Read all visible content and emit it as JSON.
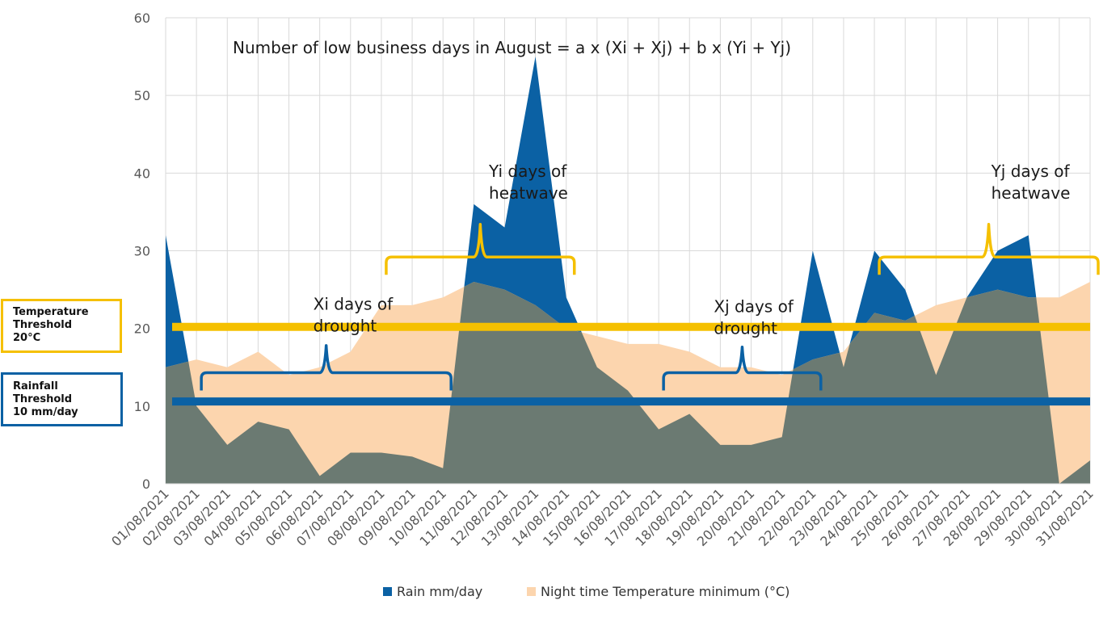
{
  "chart_data": {
    "type": "area",
    "title": "Number of low business days in August = a x (Xi + Xj) + b x (Yi + Yj)",
    "x": [
      "01/08/2021",
      "02/08/2021",
      "03/08/2021",
      "04/08/2021",
      "05/08/2021",
      "06/08/2021",
      "07/08/2021",
      "08/08/2021",
      "09/08/2021",
      "10/08/2021",
      "11/08/2021",
      "12/08/2021",
      "13/08/2021",
      "14/08/2021",
      "15/08/2021",
      "16/08/2021",
      "17/08/2021",
      "18/08/2021",
      "19/08/2021",
      "20/08/2021",
      "21/08/2021",
      "22/08/2021",
      "23/08/2021",
      "24/08/2021",
      "25/08/2021",
      "26/08/2021",
      "27/08/2021",
      "28/08/2021",
      "29/08/2021",
      "30/08/2021",
      "31/08/2021"
    ],
    "ylim": [
      0,
      60
    ],
    "yticks": [
      0,
      10,
      20,
      30,
      40,
      50,
      60
    ],
    "grid": true,
    "legend_position": "bottom",
    "series": [
      {
        "name": "Rain mm/day",
        "color": "#0B61A4",
        "values": [
          32,
          10,
          5,
          8,
          7,
          1,
          4,
          4,
          3.5,
          2,
          36,
          33,
          55,
          24,
          15,
          12,
          7,
          9,
          5,
          5,
          6,
          30,
          15,
          30,
          25,
          14,
          24,
          30,
          32,
          0,
          3
        ]
      },
      {
        "name": "Night time Temperature minimum (°C)",
        "color": "#FCD5AE",
        "values": [
          15,
          16,
          15,
          17,
          14,
          15,
          17,
          23,
          23,
          24,
          26,
          25,
          23,
          20,
          19,
          18,
          18,
          17,
          15,
          15,
          14,
          16,
          17,
          22,
          21,
          23,
          24,
          25,
          24,
          24,
          26
        ]
      }
    ],
    "overlap_color": "#6B7A72",
    "thresholds": [
      {
        "label": "Temperature\nThreshold\n20°C",
        "value": 20.2,
        "color": "#F5C000"
      },
      {
        "label": "Rainfall\nThreshold\n10 mm/day",
        "value": 10.6,
        "color": "#0B61A4"
      }
    ],
    "annotations": [
      {
        "text": "Xi days of\ndrought",
        "color": "#0B61A4",
        "from_day": 2,
        "to_day": 10,
        "at": 14.3,
        "tip": 17.8,
        "text_day": 6.0,
        "text_y": 22.4
      },
      {
        "text": "Xj days of\ndrought",
        "color": "#0B61A4",
        "from_day": 17,
        "to_day": 22,
        "at": 14.3,
        "tip": 17.6,
        "text_day": 19.0,
        "text_y": 22.1
      },
      {
        "text": "Yi days of\nheatwave",
        "color": "#F5C000",
        "from_day": 8,
        "to_day": 14,
        "at": 29.2,
        "tip": 33.4,
        "text_day": 11.7,
        "text_y": 39.5
      },
      {
        "text": "Yj days of\nheatwave",
        "color": "#F5C000",
        "from_day": 24,
        "to_day": 31,
        "at": 29.2,
        "tip": 33.4,
        "text_day": 28.0,
        "text_y": 39.5
      }
    ]
  }
}
